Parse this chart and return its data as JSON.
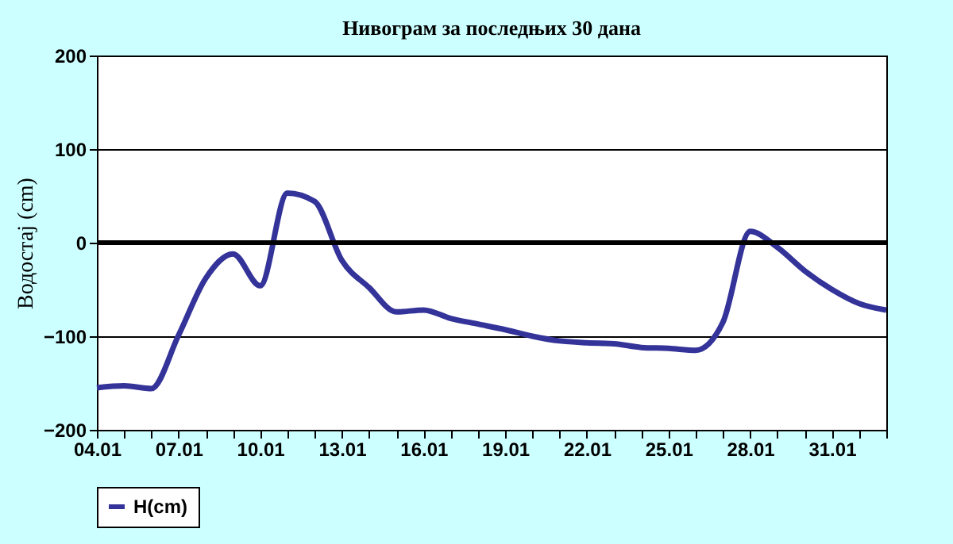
{
  "chart_data": {
    "type": "line",
    "title": "Нивограм за последњих 30 дана",
    "ylabel": "Водостај (cm)",
    "categories": [
      "04.01",
      null,
      null,
      "07.01",
      null,
      null,
      "10.01",
      null,
      null,
      "13.01",
      null,
      null,
      "16.01",
      null,
      null,
      "19.01",
      null,
      null,
      "22.01",
      null,
      null,
      "25.01",
      null,
      null,
      "28.01",
      null,
      null,
      "31.01",
      null,
      null
    ],
    "series": [
      {
        "name": "H(cm)",
        "color": "#333399",
        "values": [
          -155,
          -153,
          -156,
          -99,
          -38,
          -12,
          -46,
          53,
          44,
          -19,
          -48,
          -74,
          -72,
          -81,
          -87,
          -93,
          -100,
          -105,
          -107,
          -108,
          -112,
          -113,
          -115,
          -85,
          12,
          -5,
          -30,
          -50,
          -65,
          -72
        ]
      }
    ],
    "ylim": [
      -200,
      200
    ],
    "yticks": [
      -200,
      -100,
      0,
      100,
      200
    ],
    "grid": "y",
    "legend": "bottom",
    "line_style": "solid",
    "ref_lines": [
      {
        "axis": "y",
        "value": 0,
        "color": "#000000"
      }
    ]
  }
}
